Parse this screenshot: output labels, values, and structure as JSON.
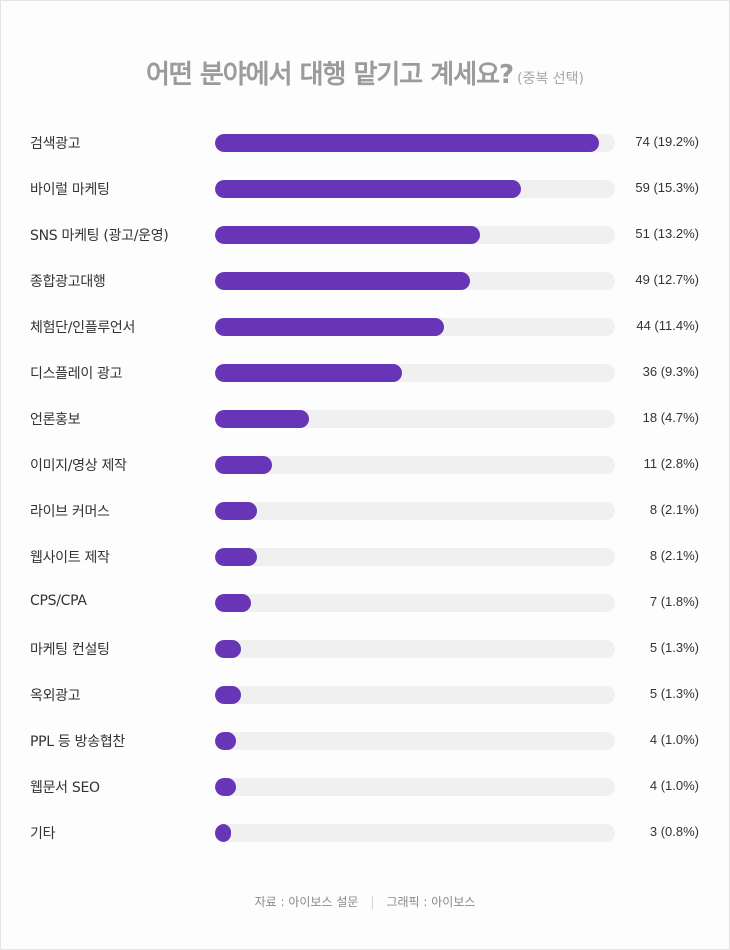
{
  "chart_data": {
    "type": "bar",
    "title": "어떤 분야에서 대행 맡기고 계세요?",
    "subtitle": "(중복 선택)",
    "categories": [
      "검색광고",
      "바이럴 마케팅",
      "SNS 마케팅 (광고/운영)",
      "종합광고대행",
      "체험단/인플루언서",
      "디스플레이 광고",
      "언론홍보",
      "이미지/영상 제작",
      "라이브 커머스",
      "웹사이트 제작",
      "CPS/CPA",
      "마케팅 컨설팅",
      "옥외광고",
      "PPL 등 방송협찬",
      "웹문서 SEO",
      "기타"
    ],
    "values": [
      74,
      59,
      51,
      49,
      44,
      36,
      18,
      11,
      8,
      8,
      7,
      5,
      5,
      4,
      4,
      3
    ],
    "value_labels": [
      "74 (19.2%)",
      "59 (15.3%)",
      "51 (13.2%)",
      "49 (12.7%)",
      "44 (11.4%)",
      "36 (9.3%)",
      "18 (4.7%)",
      "11 (2.8%)",
      "8 (2.1%)",
      "8 (2.1%)",
      "7 (1.8%)",
      "5 (1.3%)",
      "5 (1.3%)",
      "4 (1.0%)",
      "4 (1.0%)",
      "3 (0.8%)"
    ],
    "xlim": [
      0,
      77
    ],
    "bar_color": "#6735b5",
    "track_color": "#f0f0f0"
  },
  "footer": {
    "source": "자료 : 아이보스 설문",
    "separator": "|",
    "graphic": "그래픽 : 아이보스"
  }
}
